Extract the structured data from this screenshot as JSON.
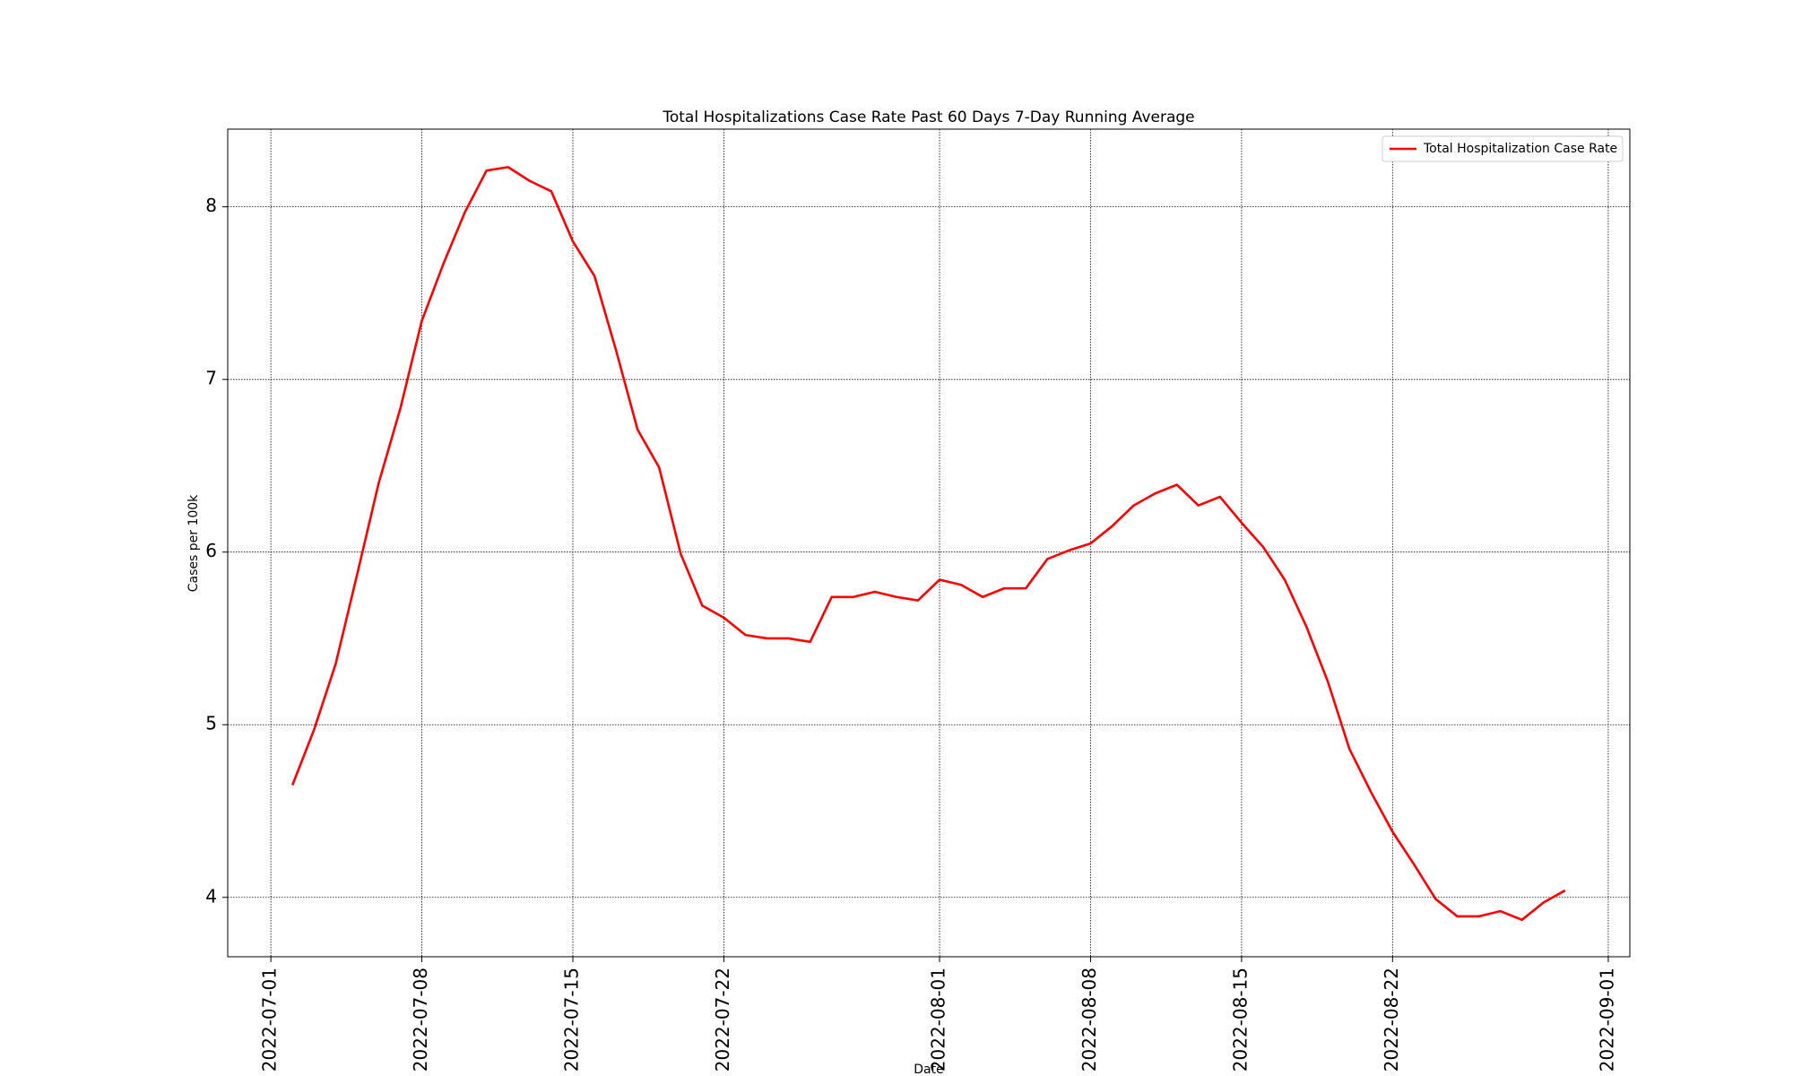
{
  "chart_data": {
    "type": "line",
    "title": "Total Hospitalizations Case Rate  Past 60 Days 7-Day Running Average",
    "x_label": "Date",
    "y_label": "Cases per 100k",
    "x": [
      "2022-07-02",
      "2022-07-03",
      "2022-07-04",
      "2022-07-05",
      "2022-07-06",
      "2022-07-07",
      "2022-07-08",
      "2022-07-09",
      "2022-07-10",
      "2022-07-11",
      "2022-07-12",
      "2022-07-13",
      "2022-07-14",
      "2022-07-15",
      "2022-07-16",
      "2022-07-17",
      "2022-07-18",
      "2022-07-19",
      "2022-07-20",
      "2022-07-21",
      "2022-07-22",
      "2022-07-23",
      "2022-07-24",
      "2022-07-25",
      "2022-07-26",
      "2022-07-27",
      "2022-07-28",
      "2022-07-29",
      "2022-07-30",
      "2022-07-31",
      "2022-08-01",
      "2022-08-02",
      "2022-08-03",
      "2022-08-04",
      "2022-08-05",
      "2022-08-06",
      "2022-08-07",
      "2022-08-08",
      "2022-08-09",
      "2022-08-10",
      "2022-08-11",
      "2022-08-12",
      "2022-08-13",
      "2022-08-14",
      "2022-08-15",
      "2022-08-16",
      "2022-08-17",
      "2022-08-18",
      "2022-08-19",
      "2022-08-20",
      "2022-08-21",
      "2022-08-22",
      "2022-08-23",
      "2022-08-24",
      "2022-08-25",
      "2022-08-26",
      "2022-08-27",
      "2022-08-28",
      "2022-08-29",
      "2022-08-30"
    ],
    "series": [
      {
        "name": "Total Hospitalization Case Rate",
        "color": "#ff0000",
        "values": [
          4.65,
          4.97,
          5.35,
          5.87,
          6.4,
          6.83,
          7.34,
          7.67,
          7.97,
          8.21,
          8.23,
          8.15,
          8.09,
          7.8,
          7.6,
          7.17,
          6.71,
          6.49,
          5.99,
          5.69,
          5.62,
          5.52,
          5.5,
          5.5,
          5.48,
          5.74,
          5.74,
          5.77,
          5.74,
          5.72,
          5.84,
          5.81,
          5.74,
          5.79,
          5.79,
          5.96,
          6.01,
          6.05,
          6.15,
          6.27,
          6.34,
          6.39,
          6.27,
          6.32,
          6.17,
          6.03,
          5.84,
          5.57,
          5.25,
          4.86,
          4.61,
          4.38,
          4.19,
          3.99,
          3.89,
          3.89,
          3.92,
          3.87,
          3.97,
          4.04
        ]
      }
    ],
    "xlim": [
      "2022-06-29",
      "2022-09-02"
    ],
    "xticks": [
      "2022-07-01",
      "2022-07-08",
      "2022-07-15",
      "2022-07-22",
      "2022-08-01",
      "2022-08-08",
      "2022-08-15",
      "2022-08-22",
      "2022-09-01"
    ],
    "ylim": [
      3.656,
      8.45
    ],
    "yticks": [
      4,
      5,
      6,
      7,
      8
    ],
    "grid": true,
    "legend": "upper right"
  }
}
